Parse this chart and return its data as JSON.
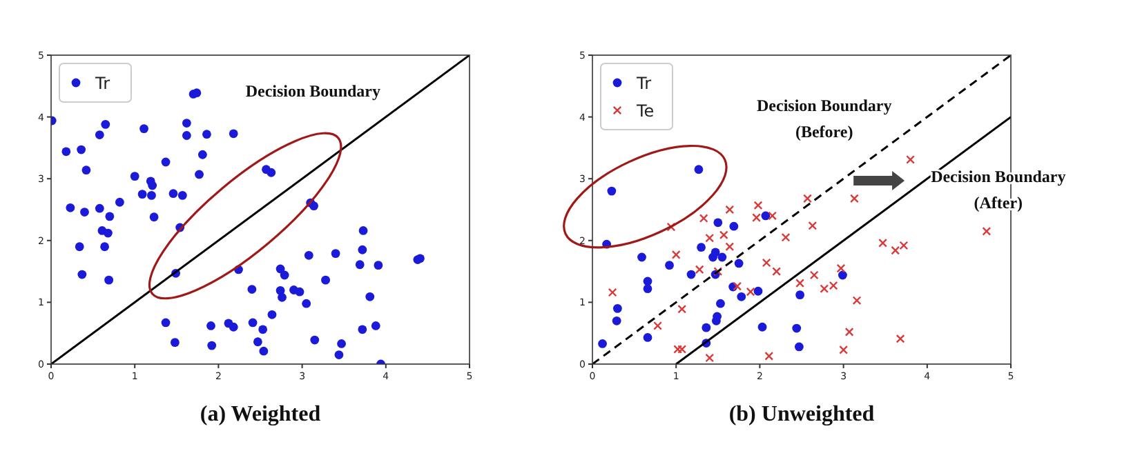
{
  "chart_data": [
    {
      "type": "scatter",
      "title": "(a) Weighted",
      "xlim": [
        0,
        5
      ],
      "ylim": [
        0,
        5
      ],
      "xticks": [
        0,
        1,
        2,
        3,
        4,
        5
      ],
      "yticks": [
        0,
        1,
        2,
        3,
        4,
        5
      ],
      "legend": "top left",
      "annotations": [
        "Decision Boundary"
      ],
      "series": [
        {
          "name": "Tr",
          "color": "#1a1ad8",
          "marker": "circle",
          "x": [
            0.01,
            0.18,
            0.36,
            0.42,
            0.65,
            0.58,
            1.11,
            1.62,
            1.62,
            1.86,
            2.18,
            1.7,
            1.74,
            1.81,
            1.37,
            1.77,
            1.0,
            1.19,
            1.21,
            1.09,
            1.2,
            1.46,
            1.57,
            0.82,
            0.23,
            0.58,
            0.4,
            0.7,
            1.23,
            0.61,
            0.68,
            1.54,
            0.34,
            0.64,
            0.37,
            0.69,
            1.49,
            2.57,
            2.63,
            3.1,
            3.14,
            2.24,
            2.74,
            2.79,
            2.4,
            2.74,
            2.76,
            2.9,
            2.97,
            3.05,
            3.08,
            3.4,
            3.28,
            3.73,
            3.72,
            3.69,
            3.91,
            3.81,
            4.38,
            4.41,
            2.64,
            1.37,
            1.91,
            2.12,
            2.18,
            2.41,
            2.53,
            3.72,
            3.88,
            1.48,
            1.92,
            2.47,
            2.54,
            3.15,
            3.47,
            3.44,
            3.94
          ],
          "values": [
            3.94,
            3.44,
            3.47,
            3.14,
            3.88,
            3.71,
            3.81,
            3.9,
            3.7,
            3.72,
            3.73,
            4.37,
            4.39,
            3.39,
            3.27,
            3.07,
            3.04,
            2.96,
            2.89,
            2.75,
            2.73,
            2.76,
            2.73,
            2.62,
            2.53,
            2.52,
            2.46,
            2.39,
            2.38,
            2.16,
            2.12,
            2.21,
            1.9,
            1.9,
            1.45,
            1.36,
            1.47,
            3.15,
            3.1,
            2.61,
            2.56,
            1.53,
            1.54,
            1.44,
            1.21,
            1.19,
            1.08,
            1.2,
            1.17,
            0.98,
            1.76,
            1.79,
            1.36,
            2.16,
            1.85,
            1.61,
            1.6,
            1.09,
            1.69,
            1.71,
            0.8,
            0.67,
            0.62,
            0.66,
            0.6,
            0.67,
            0.56,
            0.56,
            0.62,
            0.35,
            0.3,
            0.36,
            0.21,
            0.39,
            0.33,
            0.15,
            0.0
          ]
        },
        {
          "type": "line",
          "color": "#000000",
          "line_style": "solid",
          "marker": "none",
          "x": [
            0,
            5
          ],
          "values": [
            0,
            5
          ]
        }
      ]
    },
    {
      "type": "scatter",
      "title": "(b) Unweighted",
      "xlim": [
        0,
        5
      ],
      "ylim": [
        0,
        5
      ],
      "xticks": [
        0,
        1,
        2,
        3,
        4,
        5
      ],
      "yticks": [
        0,
        1,
        2,
        3,
        4,
        5
      ],
      "legend": "top left",
      "annotations": [
        "Decision Boundary\n(Before)",
        "Decision Boundary\n(After)"
      ],
      "series": [
        {
          "name": "Tr",
          "color": "#1a1ad8",
          "marker": "circle",
          "x": [
            0.12,
            0.23,
            0.17,
            0.29,
            0.3,
            0.59,
            0.66,
            0.66,
            0.66,
            0.92,
            1.18,
            1.27,
            1.3,
            1.36,
            1.36,
            1.44,
            1.47,
            1.47,
            1.48,
            1.49,
            1.5,
            1.53,
            1.55,
            1.69,
            1.68,
            1.75,
            1.78,
            1.98,
            2.03,
            2.07,
            2.44,
            2.47,
            2.48,
            2.99
          ],
          "values": [
            0.33,
            2.8,
            1.94,
            0.7,
            0.9,
            1.73,
            1.34,
            1.22,
            0.43,
            1.6,
            1.45,
            3.15,
            1.89,
            0.59,
            0.34,
            1.73,
            1.81,
            1.45,
            0.7,
            0.77,
            2.29,
            0.98,
            1.73,
            2.23,
            1.25,
            1.63,
            1.09,
            1.18,
            0.6,
            2.4,
            0.58,
            0.28,
            1.12,
            1.44
          ]
        },
        {
          "name": "Te",
          "color": "#d83a3a",
          "marker": "cross",
          "x": [
            0.24,
            0.78,
            0.94,
            1.0,
            1.02,
            1.07,
            1.07,
            1.28,
            1.33,
            1.4,
            1.4,
            1.5,
            1.57,
            1.64,
            1.64,
            1.73,
            1.89,
            1.98,
            1.96,
            2.08,
            2.15,
            2.2,
            2.11,
            2.31,
            2.48,
            2.57,
            2.63,
            2.65,
            2.77,
            2.88,
            2.97,
            3.0,
            3.07,
            3.13,
            3.16,
            3.47,
            3.62,
            3.72,
            3.68,
            3.8,
            4.71
          ],
          "values": [
            1.16,
            0.62,
            2.22,
            1.77,
            0.24,
            0.24,
            0.89,
            1.53,
            2.36,
            2.04,
            0.1,
            1.5,
            2.09,
            1.9,
            2.5,
            1.26,
            1.17,
            2.57,
            2.37,
            1.64,
            2.4,
            1.5,
            0.13,
            2.05,
            1.31,
            2.68,
            2.24,
            1.44,
            1.22,
            1.27,
            1.55,
            0.23,
            0.52,
            2.68,
            1.03,
            1.96,
            1.84,
            1.92,
            0.41,
            3.31,
            2.15
          ]
        },
        {
          "type": "line",
          "color": "#000000",
          "line_style": "dashed",
          "marker": "none",
          "x": [
            0,
            5
          ],
          "values": [
            0,
            5
          ]
        },
        {
          "type": "line",
          "color": "#000000",
          "line_style": "solid",
          "marker": "none",
          "x": [
            1,
            5
          ],
          "values": [
            0,
            4
          ]
        }
      ]
    }
  ]
}
